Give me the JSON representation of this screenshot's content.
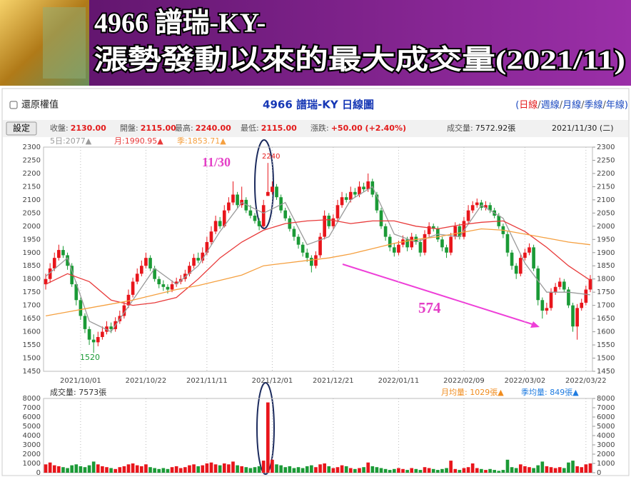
{
  "banner": {
    "line1": "4966 譜瑞-KY-",
    "line2": "漲勢發動以來的最大成交量(2021/11)"
  },
  "toolbar": {
    "checkbox": "還原權值",
    "period_prefix": "(",
    "period_separator": "/",
    "period_suffix": ")",
    "periods": [
      "日線",
      "週線",
      "月線",
      "季線",
      "年線"
    ]
  },
  "quote": {
    "button": "設定",
    "items": [
      {
        "label": "收盤:",
        "value": "2130.00"
      },
      {
        "label": "開盤:",
        "value": "2115.00"
      },
      {
        "label": "最高:",
        "value": "2240.00"
      },
      {
        "label": "最低:",
        "value": "2115.00"
      },
      {
        "label": "漲跌:",
        "value": "+50.00 (+2.40%)"
      },
      {
        "label": "成交量:",
        "value": "7572.92張"
      }
    ],
    "date": "2021/11/30 (二)"
  },
  "chart_data": {
    "type": "candlestick",
    "title": "4966 譜瑞-KY  日線圖",
    "categories": [
      null,
      null,
      null,
      null,
      null,
      null,
      null,
      null,
      "2021/10/01",
      null,
      null,
      null,
      null,
      null,
      null,
      null,
      null,
      null,
      null,
      null,
      null,
      null,
      null,
      "2021/10/22",
      null,
      null,
      null,
      null,
      null,
      null,
      null,
      null,
      null,
      null,
      null,
      null,
      null,
      "2021/11/11",
      null,
      null,
      null,
      null,
      null,
      null,
      null,
      null,
      null,
      null,
      null,
      null,
      null,
      null,
      "2021/12/01",
      null,
      null,
      null,
      null,
      null,
      null,
      null,
      null,
      null,
      null,
      null,
      null,
      null,
      "2021/12/21",
      null,
      null,
      null,
      null,
      null,
      null,
      null,
      null,
      null,
      null,
      null,
      null,
      null,
      null,
      "2022/01/11",
      null,
      null,
      null,
      null,
      null,
      null,
      null,
      null,
      null,
      null,
      null,
      null,
      null,
      null,
      "2022/02/09",
      null,
      null,
      null,
      null,
      null,
      null,
      null,
      null,
      null,
      null,
      null,
      null,
      null,
      "2022/03/02",
      null,
      null,
      null,
      null,
      null,
      null,
      null,
      null,
      null,
      null,
      null,
      null,
      null,
      "2022/03/22",
      null
    ],
    "open": [
      1780,
      1800,
      1840,
      1880,
      1910,
      1890,
      1850,
      1780,
      1720,
      1660,
      1610,
      1570,
      1560,
      1580,
      1600,
      1620,
      1610,
      1640,
      1660,
      1700,
      1740,
      1790,
      1820,
      1850,
      1880,
      1840,
      1800,
      1780,
      1770,
      1760,
      1780,
      1790,
      1800,
      1820,
      1850,
      1880,
      1870,
      1900,
      1940,
      1980,
      2020,
      2000,
      2060,
      2090,
      2120,
      2080,
      2100,
      2060,
      2040,
      2020,
      2000,
      2115,
      2130,
      2150,
      2110,
      2060,
      2030,
      1990,
      1960,
      1930,
      1900,
      1880,
      1850,
      1890,
      1960,
      2040,
      2000,
      2030,
      2080,
      2110,
      2100,
      2130,
      2120,
      2150,
      2140,
      2170,
      2120,
      2060,
      2000,
      1960,
      1920,
      1900,
      1930,
      1950,
      1920,
      1960,
      1940,
      1900,
      1970,
      2000,
      1990,
      1950,
      1920,
      1900,
      1960,
      2000,
      1960,
      2020,
      2060,
      2080,
      2090,
      2070,
      2080,
      2060,
      2040,
      2000,
      1970,
      1900,
      1850,
      1820,
      1880,
      1900,
      1920,
      1840,
      1720,
      1680,
      1690,
      1750,
      1770,
      1790,
      1760,
      1700,
      1620,
      1690,
      1710,
      1760
    ],
    "high": [
      1820,
      1860,
      1900,
      1930,
      1925,
      1900,
      1860,
      1790,
      1730,
      1670,
      1620,
      1590,
      1600,
      1620,
      1640,
      1635,
      1655,
      1680,
      1715,
      1760,
      1805,
      1840,
      1870,
      1900,
      1890,
      1850,
      1810,
      1795,
      1780,
      1795,
      1805,
      1815,
      1835,
      1865,
      1895,
      1900,
      1920,
      1960,
      2000,
      2040,
      2035,
      2080,
      2110,
      2170,
      2130,
      2150,
      2110,
      2080,
      2050,
      2030,
      2100,
      2240,
      2170,
      2160,
      2120,
      2070,
      2040,
      2000,
      1970,
      1940,
      1915,
      1890,
      1905,
      1975,
      2060,
      2050,
      2045,
      2100,
      2130,
      2125,
      2150,
      2145,
      2170,
      2165,
      2200,
      2180,
      2130,
      2070,
      2010,
      1970,
      1935,
      1945,
      1965,
      1960,
      1975,
      1970,
      1950,
      1985,
      2015,
      2010,
      2000,
      1960,
      1930,
      1975,
      2015,
      2010,
      2035,
      2080,
      2095,
      2105,
      2100,
      2095,
      2090,
      2070,
      2050,
      2010,
      1980,
      1910,
      1860,
      1895,
      1915,
      1935,
      1930,
      1850,
      1730,
      1710,
      1765,
      1785,
      1805,
      1800,
      1770,
      1710,
      1705,
      1725,
      1775,
      1815
    ],
    "low": [
      1760,
      1785,
      1830,
      1870,
      1880,
      1835,
      1770,
      1700,
      1645,
      1595,
      1550,
      1520,
      1545,
      1570,
      1590,
      1595,
      1600,
      1630,
      1650,
      1690,
      1730,
      1780,
      1810,
      1840,
      1830,
      1790,
      1765,
      1755,
      1745,
      1750,
      1770,
      1780,
      1790,
      1810,
      1840,
      1860,
      1860,
      1890,
      1930,
      1970,
      1990,
      1995,
      2050,
      2080,
      2070,
      2070,
      2050,
      2030,
      2010,
      1985,
      1995,
      2115,
      2120,
      2100,
      2050,
      2020,
      1980,
      1945,
      1915,
      1885,
      1865,
      1825,
      1840,
      1880,
      1950,
      1990,
      1990,
      2020,
      2070,
      2090,
      2090,
      2110,
      2110,
      2130,
      2130,
      2110,
      2050,
      1990,
      1945,
      1905,
      1885,
      1890,
      1920,
      1905,
      1910,
      1930,
      1885,
      1890,
      1960,
      1980,
      1940,
      1905,
      1880,
      1890,
      1950,
      1950,
      1950,
      2010,
      2050,
      2070,
      2060,
      2060,
      2050,
      2030,
      1990,
      1955,
      1885,
      1835,
      1800,
      1810,
      1870,
      1890,
      1830,
      1700,
      1650,
      1665,
      1680,
      1740,
      1760,
      1750,
      1690,
      1600,
      1570,
      1680,
      1700,
      1750
    ],
    "close": [
      1800,
      1840,
      1880,
      1910,
      1890,
      1850,
      1780,
      1720,
      1660,
      1610,
      1570,
      1560,
      1580,
      1600,
      1620,
      1610,
      1640,
      1660,
      1700,
      1740,
      1790,
      1820,
      1850,
      1880,
      1840,
      1800,
      1780,
      1770,
      1760,
      1780,
      1790,
      1800,
      1820,
      1850,
      1880,
      1870,
      1900,
      1940,
      1980,
      2020,
      2000,
      2060,
      2090,
      2120,
      2080,
      2100,
      2060,
      2040,
      2020,
      2000,
      2080,
      2130,
      2150,
      2110,
      2060,
      2030,
      1990,
      1960,
      1930,
      1900,
      1880,
      1850,
      1890,
      1960,
      2040,
      2000,
      2030,
      2080,
      2110,
      2100,
      2130,
      2120,
      2150,
      2140,
      2170,
      2120,
      2060,
      2000,
      1960,
      1920,
      1900,
      1930,
      1950,
      1920,
      1960,
      1940,
      1900,
      1970,
      2000,
      1990,
      1950,
      1920,
      1900,
      1960,
      2000,
      1960,
      2020,
      2060,
      2080,
      2090,
      2070,
      2080,
      2060,
      2040,
      2000,
      1970,
      1900,
      1850,
      1820,
      1880,
      1900,
      1920,
      1840,
      1720,
      1680,
      1690,
      1750,
      1770,
      1790,
      1760,
      1700,
      1620,
      1690,
      1710,
      1760,
      1800
    ],
    "up_color": "#e8151b",
    "down_color": "#1b9a36",
    "ylim": [
      1450,
      2300
    ],
    "yticks": [
      1450,
      1500,
      1550,
      1600,
      1650,
      1700,
      1750,
      1800,
      1850,
      1900,
      1950,
      2000,
      2050,
      2100,
      2150,
      2200,
      2250,
      2300
    ],
    "ma": [
      {
        "name": "5日:2077▲",
        "color": "#9a9a9a",
        "x": [
          0,
          5,
          10,
          15,
          20,
          25,
          30,
          35,
          40,
          45,
          50,
          55,
          60,
          65,
          70,
          75,
          80,
          85,
          90,
          95,
          100,
          105,
          110,
          115,
          120,
          125
        ],
        "values": [
          1810,
          1880,
          1640,
          1600,
          1720,
          1840,
          1780,
          1850,
          1980,
          2090,
          2050,
          2090,
          1930,
          1960,
          2100,
          2150,
          1970,
          1940,
          1970,
          1960,
          2080,
          2030,
          1860,
          1750,
          1750,
          1740
        ]
      },
      {
        "name": "月:1990.95▲",
        "color": "#e83a3a",
        "x": [
          0,
          5,
          10,
          15,
          20,
          25,
          30,
          35,
          40,
          45,
          50,
          55,
          60,
          65,
          70,
          75,
          80,
          85,
          90,
          95,
          100,
          105,
          110,
          115,
          120,
          125
        ],
        "values": [
          1780,
          1820,
          1790,
          1720,
          1700,
          1710,
          1730,
          1800,
          1880,
          1940,
          1985,
          2010,
          2020,
          2025,
          2010,
          2020,
          2020,
          2000,
          1990,
          2005,
          2015,
          2020,
          1980,
          1920,
          1850,
          1795
        ]
      },
      {
        "name": "季:1853.71▲",
        "color": "#f5a040",
        "x": [
          0,
          5,
          10,
          15,
          20,
          25,
          30,
          35,
          40,
          45,
          50,
          55,
          60,
          65,
          70,
          75,
          80,
          85,
          90,
          95,
          100,
          105,
          110,
          115,
          120,
          125
        ],
        "values": [
          1660,
          1675,
          1690,
          1705,
          1720,
          1740,
          1760,
          1775,
          1795,
          1815,
          1850,
          1860,
          1870,
          1880,
          1895,
          1915,
          1935,
          1950,
          1960,
          1975,
          1990,
          1985,
          1970,
          1955,
          1940,
          1930
        ]
      }
    ],
    "volume": {
      "label": "成交量: 7573張",
      "ylim": [
        0,
        8000
      ],
      "yticks": [
        0,
        1000,
        2000,
        3000,
        4000,
        5000,
        6000,
        7000,
        8000
      ],
      "averages": [
        {
          "text": "月均量: 1029張▲",
          "color": "#f08c1e"
        },
        {
          "text": "季均量: 849張▲",
          "color": "#1e7be0"
        }
      ],
      "values": [
        900,
        1100,
        800,
        700,
        600,
        500,
        800,
        900,
        700,
        600,
        800,
        1200,
        900,
        700,
        600,
        500,
        400,
        600,
        700,
        900,
        1000,
        800,
        700,
        900,
        600,
        500,
        400,
        500,
        400,
        600,
        700,
        500,
        600,
        800,
        900,
        700,
        800,
        1000,
        1100,
        900,
        800,
        1000,
        900,
        1200,
        800,
        700,
        600,
        500,
        600,
        700,
        1300,
        7573,
        1400,
        900,
        800,
        600,
        700,
        500,
        600,
        500,
        700,
        800,
        600,
        900,
        1000,
        700,
        500,
        600,
        800,
        700,
        500,
        400,
        500,
        600,
        1100,
        700,
        600,
        500,
        400,
        300,
        400,
        500,
        400,
        300,
        500,
        400,
        300,
        600,
        500,
        400,
        300,
        400,
        500,
        1300,
        400,
        300,
        500,
        600,
        1000,
        500,
        400,
        300,
        400,
        300,
        200,
        300,
        1400,
        600,
        500,
        900,
        700,
        600,
        500,
        800,
        1200,
        700,
        600,
        500,
        600,
        500,
        1100,
        1300,
        700,
        600,
        900,
        1000
      ]
    },
    "annotations": [
      {
        "text": "11/30"
      },
      {
        "text": "2240"
      },
      {
        "text": "1520"
      },
      {
        "text": "574"
      }
    ]
  }
}
